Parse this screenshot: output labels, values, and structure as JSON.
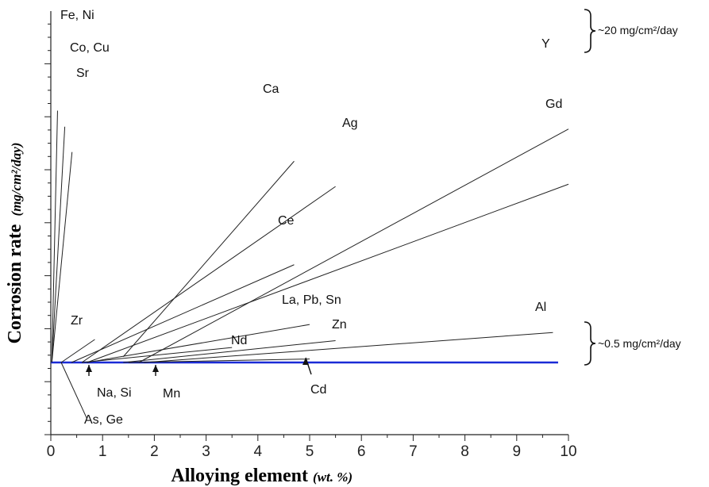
{
  "chart_data": {
    "type": "line",
    "xlabel": "Alloying element",
    "xlabel_unit": "(wt. %)",
    "ylabel": "Corrosion rate",
    "ylabel_unit": "(mg/cm²/day)",
    "xlim": [
      0,
      10
    ],
    "x_ticks": [
      "0",
      "1",
      "2",
      "3",
      "4",
      "5",
      "6",
      "7",
      "8",
      "9",
      "10"
    ],
    "grid": false,
    "baseline": {
      "color": "#1a2bd6",
      "x": [
        0,
        9.8
      ],
      "y": [
        0.1,
        0.1
      ]
    },
    "series": [
      {
        "name": "Fe, Ni",
        "x": [
          0.02,
          0.13
        ],
        "y": [
          0.1,
          22
        ]
      },
      {
        "name": "Co, Cu",
        "x": [
          0.02,
          0.27
        ],
        "y": [
          0.1,
          20.6
        ]
      },
      {
        "name": "Sr",
        "x": [
          0.02,
          0.41
        ],
        "y": [
          0.1,
          18.4
        ]
      },
      {
        "name": "Ca",
        "x": [
          1.4,
          4.7
        ],
        "y": [
          0.6,
          17.6
        ]
      },
      {
        "name": "Ag",
        "x": [
          0.6,
          5.5
        ],
        "y": [
          0.1,
          15.4
        ]
      },
      {
        "name": "Y",
        "x": [
          1.7,
          10.0
        ],
        "y": [
          0.1,
          20.4
        ]
      },
      {
        "name": "Gd",
        "x": [
          0.7,
          10.0
        ],
        "y": [
          0.1,
          15.6
        ]
      },
      {
        "name": "Ce",
        "x": [
          0.4,
          4.7
        ],
        "y": [
          0.1,
          8.6
        ]
      },
      {
        "name": "Zr",
        "x": [
          0.2,
          0.85
        ],
        "y": [
          0.1,
          2.1
        ]
      },
      {
        "name": "La, Pb, Sn",
        "x": [
          0.7,
          5.0
        ],
        "y": [
          0.1,
          3.4
        ]
      },
      {
        "name": "Nd",
        "x": [
          0.6,
          3.5
        ],
        "y": [
          0.1,
          1.4
        ]
      },
      {
        "name": "Zn",
        "x": [
          1.4,
          5.5
        ],
        "y": [
          0.1,
          2.0
        ]
      },
      {
        "name": "Al",
        "x": [
          1.8,
          9.7
        ],
        "y": [
          0.1,
          2.7
        ]
      },
      {
        "name": "Cd",
        "x": [
          1.5,
          5.0
        ],
        "y": [
          0.1,
          0.4
        ]
      }
    ],
    "annotations": [
      {
        "text": "~20 mg/cm²/day",
        "bracket_y": [
          20.4,
          22.5
        ]
      },
      {
        "text": "~0.5 mg/cm²/day",
        "bracket_y": [
          -0.2,
          2.5
        ]
      }
    ],
    "arrow_labels": [
      {
        "name": "Na, Si",
        "x": 0.72,
        "y": 0.1
      },
      {
        "name": "Mn",
        "x": 2.05,
        "y": 0.1
      },
      {
        "name": "Cd",
        "x": 5.0,
        "y": 0.1
      }
    ],
    "lower_label": {
      "name": "As, Ge",
      "x": [
        0.2,
        0.7
      ],
      "y": [
        0.1,
        -4.8
      ]
    }
  }
}
